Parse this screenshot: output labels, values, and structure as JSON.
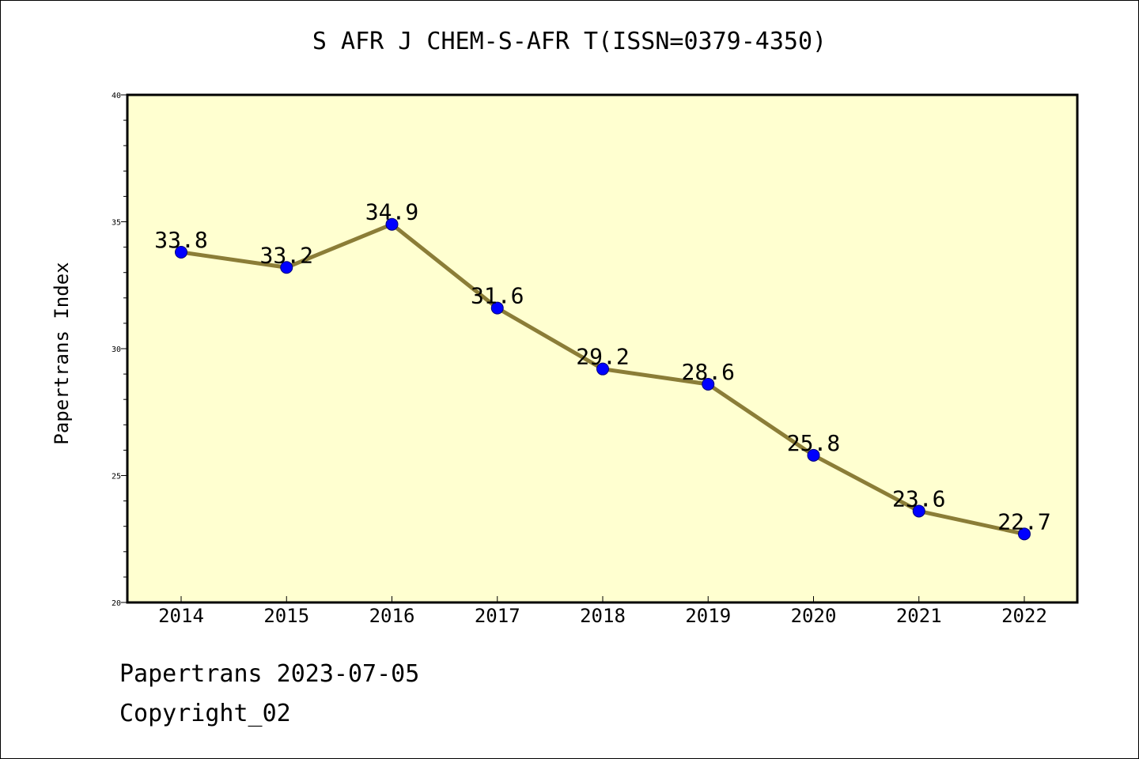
{
  "title": "S AFR J CHEM-S-AFR T(ISSN=0379-4350)",
  "footer": {
    "date_line": "Papertrans 2023-07-05",
    "copyright_line": "Copyright_02"
  },
  "colors": {
    "plot_background": "#FFFFD0",
    "line": "#8B7D37",
    "marker": "#0000FF",
    "marker_edge": "#00007A",
    "axis": "#000000"
  },
  "chart_data": {
    "type": "line",
    "title": "S AFR J CHEM-S-AFR T(ISSN=0379-4350)",
    "xlabel": "",
    "ylabel": "Papertrans Index",
    "categories": [
      "2014",
      "2015",
      "2016",
      "2017",
      "2018",
      "2019",
      "2020",
      "2021",
      "2022"
    ],
    "values": [
      33.8,
      33.2,
      34.9,
      31.6,
      29.2,
      28.6,
      25.8,
      23.6,
      22.7
    ],
    "data_labels": [
      "33.8",
      "33.2",
      "34.9",
      "31.6",
      "29.2",
      "28.6",
      "25.8",
      "23.6",
      "22.7"
    ],
    "ylim": [
      20,
      40
    ],
    "yticks": [
      "20",
      "25",
      "30",
      "35",
      "40"
    ],
    "grid": false,
    "legend": "none"
  }
}
